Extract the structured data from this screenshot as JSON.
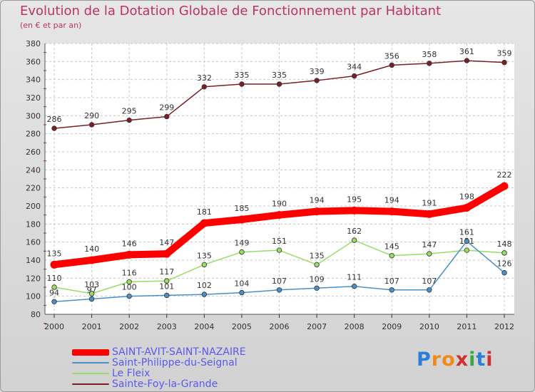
{
  "chart_data": {
    "type": "line",
    "title": "Evolution de la Dotation Globale de Fonctionnement par Habitant",
    "subtitle": "(en € et par an)",
    "xlabel": "",
    "ylabel": "",
    "categories": [
      "2000",
      "2001",
      "2002",
      "2003",
      "2004",
      "2005",
      "2006",
      "2007",
      "2008",
      "2009",
      "2010",
      "2011",
      "2012"
    ],
    "ylim": [
      80,
      380
    ],
    "ytick_step": 20,
    "grid": true,
    "legend_position": "bottom-left",
    "series": [
      {
        "name": "Sainte-Foy-la-Grande",
        "color": "#7a1f28",
        "values": [
          286,
          290,
          295,
          299,
          332,
          335,
          335,
          339,
          344,
          356,
          358,
          361,
          359
        ]
      },
      {
        "name": "Le Fleix",
        "color": "#99dd66",
        "values": [
          110,
          103,
          116,
          117,
          135,
          149,
          151,
          135,
          162,
          145,
          147,
          151,
          148
        ]
      },
      {
        "name": "Saint-Philippe-du-Seignal",
        "color": "#4a90c8",
        "values": [
          94,
          97,
          100,
          101,
          102,
          104,
          107,
          109,
          111,
          107,
          107,
          161,
          126
        ]
      },
      {
        "name": "SAINT-AVIT-SAINT-NAZAIRE",
        "color": "#ff0000",
        "values": [
          135,
          140,
          146,
          147,
          181,
          185,
          190,
          194,
          195,
          194,
          191,
          198,
          222
        ]
      }
    ]
  },
  "legend": [
    {
      "label": "SAINT-AVIT-SAINT-NAZAIRE",
      "color": "#ff0000",
      "thickness": "thick"
    },
    {
      "label": "Saint-Philippe-du-Seignal",
      "color": "#4a90c8",
      "thickness": "thin"
    },
    {
      "label": "Le Fleix",
      "color": "#99dd66",
      "thickness": "thin"
    },
    {
      "label": "Sainte-Foy-la-Grande",
      "color": "#7a1f28",
      "thickness": "thin"
    }
  ],
  "logo": {
    "text": "Proxiti",
    "letters": [
      "P",
      "r",
      "o",
      "x",
      "i",
      "t",
      "i"
    ],
    "colors": [
      "#2b7fd6",
      "#f08a1a",
      "#f08a1a",
      "#d03030",
      "#3aa83a",
      "#2b7fd6",
      "#d03030"
    ]
  }
}
